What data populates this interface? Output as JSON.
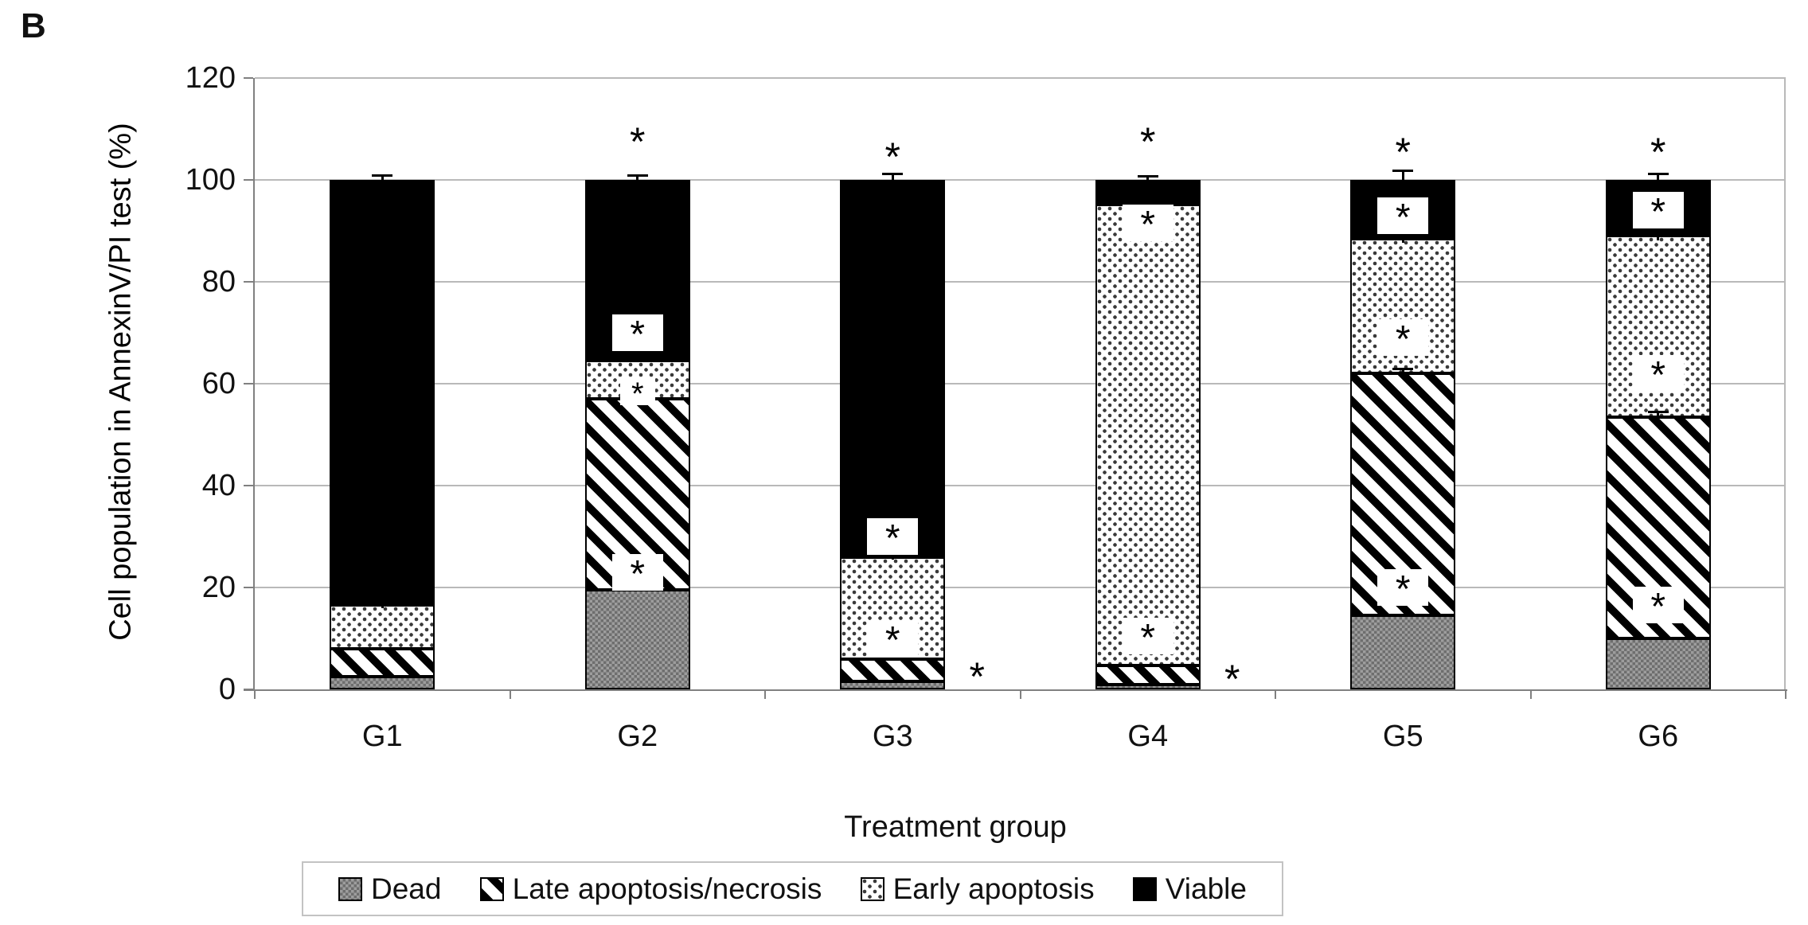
{
  "panel_label": "B",
  "chart_data": {
    "type": "bar",
    "stacked": true,
    "xlabel": "Treatment group",
    "ylabel": "Cell population in AnnexinV/PI test (%)",
    "ylim": [
      0,
      120
    ],
    "yticks": [
      0,
      20,
      40,
      60,
      80,
      100,
      120
    ],
    "grid": true,
    "legend_position": "bottom",
    "categories": [
      "G1",
      "G2",
      "G3",
      "G4",
      "G5",
      "G6"
    ],
    "series": [
      {
        "name": "Dead",
        "pattern": "gray-checker",
        "values": [
          2.5,
          19.5,
          1.5,
          1.0,
          14.5,
          10.0
        ]
      },
      {
        "name": "Late apoptosis/necrosis",
        "pattern": "diagonal-hatch",
        "values": [
          5.5,
          37.5,
          4.5,
          3.7,
          47.5,
          43.5
        ]
      },
      {
        "name": "Early apoptosis",
        "pattern": "dots",
        "values": [
          8.5,
          7.5,
          20.0,
          90.5,
          26.5,
          35.5
        ]
      },
      {
        "name": "Viable",
        "pattern": "solid-black",
        "values": [
          83.5,
          35.5,
          74.0,
          4.8,
          11.5,
          11.0
        ]
      }
    ],
    "error_bars": [
      {
        "group": "G1",
        "at": 100,
        "up": 0.9,
        "down": 0.9
      },
      {
        "group": "G1",
        "at": 16.5,
        "up": 0.6,
        "down": 0.6
      },
      {
        "group": "G2",
        "at": 100,
        "up": 1.0,
        "down": 0.5
      },
      {
        "group": "G3",
        "at": 100,
        "up": 1.3,
        "down": 0.6
      },
      {
        "group": "G3",
        "at": 26,
        "up": 0.8,
        "down": 0.5
      },
      {
        "group": "G4",
        "at": 100,
        "up": 0.8,
        "down": 0.4
      },
      {
        "group": "G5",
        "at": 100,
        "up": 1.9,
        "down": 0.8
      },
      {
        "group": "G5",
        "at": 88.5,
        "up": 1.5,
        "down": 0.8
      },
      {
        "group": "G5",
        "at": 62,
        "up": 1.0,
        "down": 0.5
      },
      {
        "group": "G6",
        "at": 100,
        "up": 1.3,
        "down": 0.6
      },
      {
        "group": "G6",
        "at": 89,
        "up": 1.5,
        "down": 0.8
      },
      {
        "group": "G6",
        "at": 53.5,
        "up": 1.0,
        "down": 0.5
      }
    ],
    "significance_markers": [
      {
        "group": "G2",
        "value": 108,
        "symbol": "*",
        "style": "plain-above"
      },
      {
        "group": "G2",
        "value": 70,
        "symbol": "*",
        "style": "boxed"
      },
      {
        "group": "G2",
        "value": 58.5,
        "symbol": "*",
        "style": "boxed-small"
      },
      {
        "group": "G2",
        "value": 23,
        "symbol": "*",
        "style": "boxed"
      },
      {
        "group": "G3",
        "value": 105,
        "symbol": "*",
        "style": "plain-above"
      },
      {
        "group": "G3",
        "value": 30,
        "symbol": "*",
        "style": "boxed"
      },
      {
        "group": "G3",
        "value": 10,
        "symbol": "*",
        "style": "boxed"
      },
      {
        "group": "G3",
        "value": 3,
        "symbol": "*",
        "style": "outside-right"
      },
      {
        "group": "G4",
        "value": 108,
        "symbol": "*",
        "style": "plain-above"
      },
      {
        "group": "G4",
        "value": 91.5,
        "symbol": "*",
        "style": "boxed"
      },
      {
        "group": "G4",
        "value": 10.5,
        "symbol": "*",
        "style": "boxed"
      },
      {
        "group": "G4",
        "value": 2.5,
        "symbol": "*",
        "style": "outside-right"
      },
      {
        "group": "G5",
        "value": 106,
        "symbol": "*",
        "style": "plain-above"
      },
      {
        "group": "G5",
        "value": 93,
        "symbol": "*",
        "style": "boxed"
      },
      {
        "group": "G5",
        "value": 69,
        "symbol": "*",
        "style": "boxed"
      },
      {
        "group": "G5",
        "value": 20,
        "symbol": "*",
        "style": "boxed"
      },
      {
        "group": "G6",
        "value": 106,
        "symbol": "*",
        "style": "plain-above"
      },
      {
        "group": "G6",
        "value": 94,
        "symbol": "*",
        "style": "boxed"
      },
      {
        "group": "G6",
        "value": 62,
        "symbol": "*",
        "style": "boxed"
      },
      {
        "group": "G6",
        "value": 16.5,
        "symbol": "*",
        "style": "boxed"
      }
    ]
  },
  "colors": {
    "viable": "#000000",
    "dead_gray": "#8a8a8a",
    "gridline": "#b9b9b9",
    "axis": "#808080",
    "legend_border": "#c3c3c3",
    "background": "#ffffff"
  }
}
